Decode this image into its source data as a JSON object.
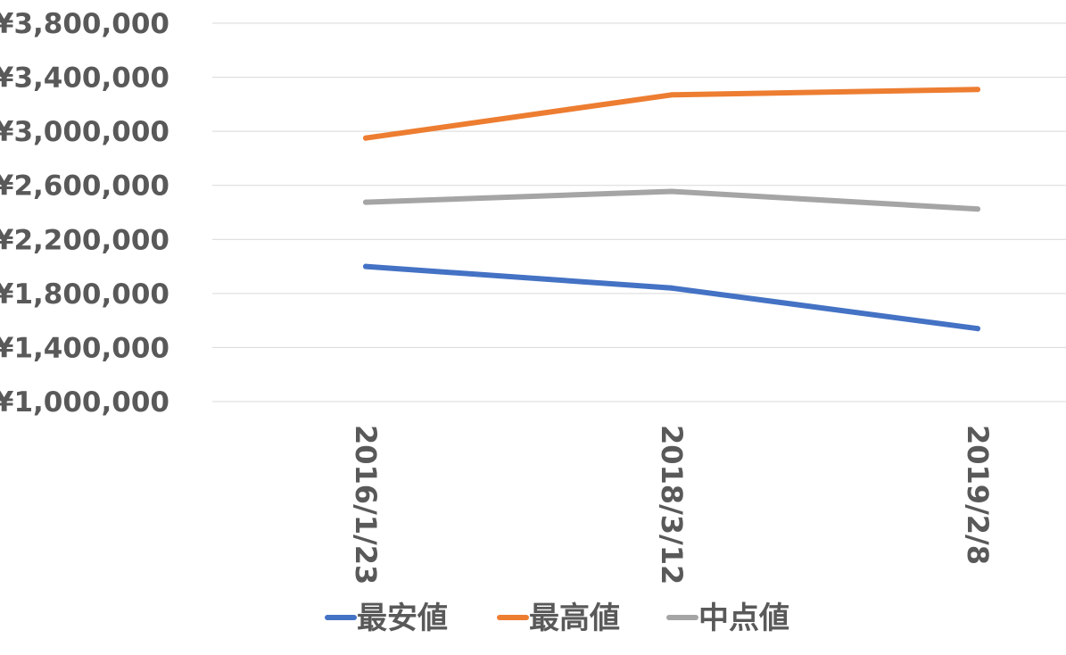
{
  "chart_data": {
    "type": "line",
    "categories": [
      "2016/1/23",
      "2018/3/12",
      "2019/2/8"
    ],
    "series": [
      {
        "name": "最安値",
        "color": "#4472c4",
        "values": [
          2000000,
          1840000,
          1540000
        ]
      },
      {
        "name": "最高値",
        "color": "#ed7d31",
        "values": [
          2950000,
          3270000,
          3310000
        ]
      },
      {
        "name": "中点値",
        "color": "#a5a5a5",
        "values": [
          2475000,
          2555000,
          2425000
        ]
      }
    ],
    "yticks": [
      "¥1,000,000",
      "¥1,400,000",
      "¥1,800,000",
      "¥2,200,000",
      "¥2,600,000",
      "¥3,000,000",
      "¥3,400,000",
      "¥3,800,000"
    ],
    "ylim": [
      1000000,
      3800000
    ],
    "grid": true,
    "legend_position": "bottom",
    "title": "",
    "xlabel": "",
    "ylabel": ""
  }
}
